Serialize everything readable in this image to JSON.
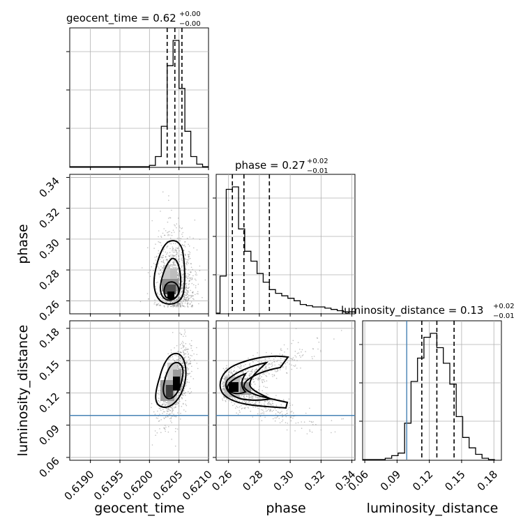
{
  "chart_data": {
    "type": "corner",
    "parameters": [
      "geocent_time",
      "phase",
      "luminosity_distance"
    ],
    "axis_labels": {
      "geocent_time": "geocent_time",
      "phase": "phase",
      "luminosity_distance": "luminosity_distance"
    },
    "ranges": {
      "geocent_time": [
        0.61865,
        0.621
      ],
      "phase": [
        0.252,
        0.342
      ],
      "luminosity_distance": [
        0.058,
        0.187
      ]
    },
    "ticks": {
      "geocent_time": [
        "0.6190",
        "0.6195",
        "0.6200",
        "0.6205",
        "0.6210"
      ],
      "phase": [
        "0.26",
        "0.28",
        "0.30",
        "0.32",
        "0.34"
      ],
      "phase_y": [
        "0.26",
        "0.28",
        "0.30",
        "0.32",
        "0.34"
      ],
      "luminosity_distance": [
        "0.06",
        "0.09",
        "0.12",
        "0.15",
        "0.18"
      ]
    },
    "titles": [
      {
        "param": "geocent_time",
        "text": "geocent_time = 0.62",
        "sup": "+0.00",
        "sub": "−0.00"
      },
      {
        "param": "phase",
        "text": "phase = 0.27",
        "sup": "+0.02",
        "sub": "−0.01"
      },
      {
        "param": "luminosity_distance",
        "text": "luminosity_distance = 0.13",
        "sup": "+0.02",
        "sub": "−0.01"
      }
    ],
    "injection": {
      "luminosity_distance": 0.099
    },
    "injection_color": "#4682b4",
    "quantile_lines": {
      "geocent_time": [
        0.6203,
        0.62043,
        0.62055
      ],
      "phase": [
        0.2625,
        0.27,
        0.2865
      ],
      "luminosity_distance": [
        0.113,
        0.127,
        0.143
      ]
    },
    "histograms": {
      "geocent_time": {
        "edges": [
          0.62,
          0.6201,
          0.6202,
          0.6203,
          0.6204,
          0.6205,
          0.6206,
          0.6207,
          0.6208,
          0.6209,
          0.621
        ],
        "counts": [
          1,
          8,
          32,
          80,
          100,
          62,
          28,
          8,
          2,
          0
        ]
      },
      "phase": {
        "edges": [
          0.2545,
          0.2585,
          0.2625,
          0.2665,
          0.2705,
          0.2745,
          0.2785,
          0.2825,
          0.2865,
          0.2905,
          0.2945,
          0.2985,
          0.3025,
          0.3065,
          0.3105,
          0.3145,
          0.3185,
          0.3225,
          0.3265,
          0.3305,
          0.3345,
          0.3385,
          0.342
        ],
        "counts": [
          30,
          100,
          102,
          68,
          50,
          42,
          32,
          25,
          19,
          16,
          14,
          12,
          10,
          7,
          6,
          5,
          5,
          4,
          3,
          2,
          1,
          1
        ]
      },
      "luminosity_distance": {
        "edges": [
          0.073,
          0.079,
          0.085,
          0.091,
          0.097,
          0.103,
          0.109,
          0.115,
          0.121,
          0.127,
          0.133,
          0.139,
          0.145,
          0.151,
          0.157,
          0.163,
          0.169,
          0.175,
          0.181
        ],
        "counts": [
          0,
          1,
          3,
          5,
          28,
          60,
          78,
          94,
          97,
          86,
          74,
          58,
          33,
          17,
          9,
          4,
          1,
          0
        ]
      }
    },
    "grid": true,
    "colors": {
      "hist": "#000000",
      "points": "#8c8c8c",
      "quantile": "#000000",
      "grid": "#b0b0b0"
    }
  }
}
